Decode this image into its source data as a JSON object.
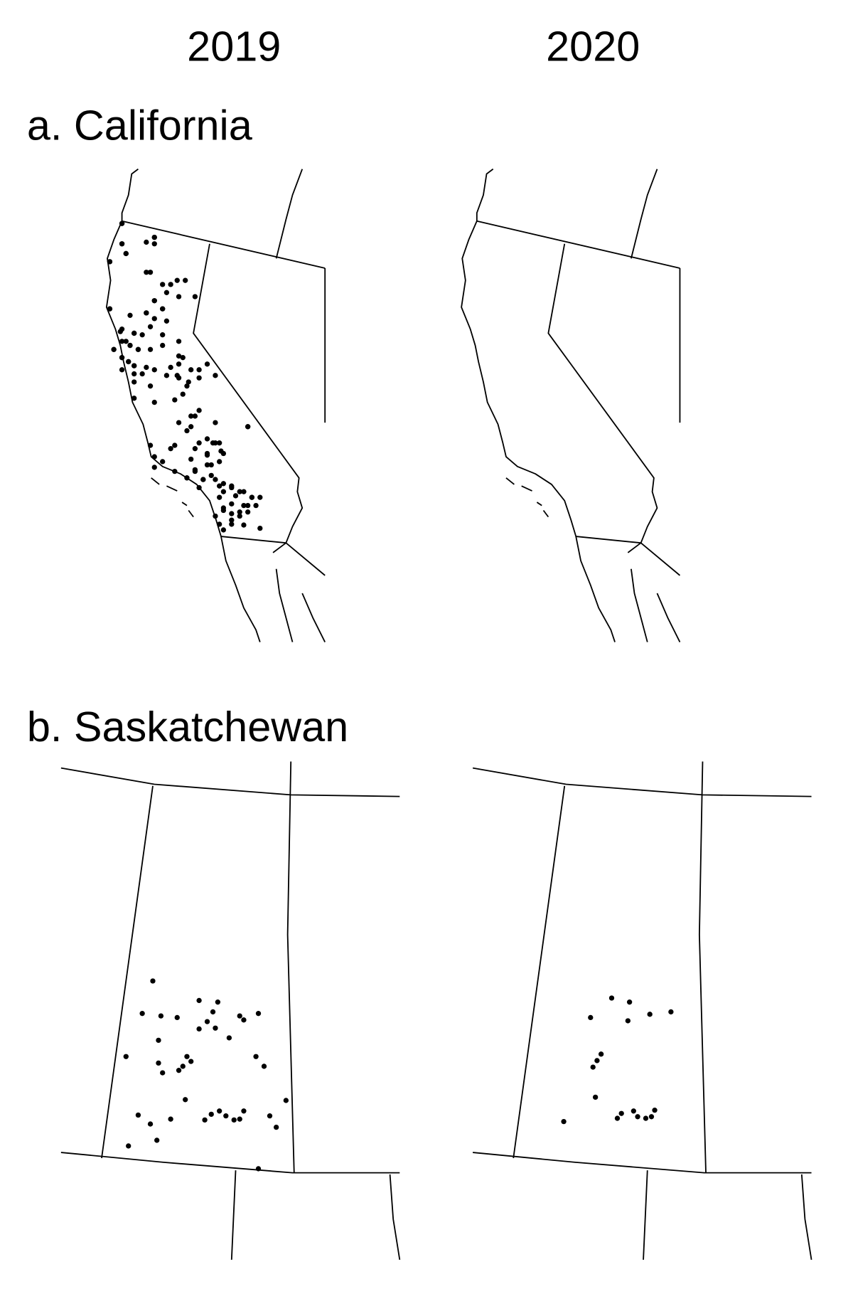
{
  "columns": [
    "2019",
    "2020"
  ],
  "panels": [
    {
      "label": "a. California"
    },
    {
      "label": "b. Saskatchewan"
    }
  ]
}
